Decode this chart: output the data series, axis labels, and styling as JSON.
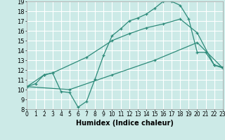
{
  "background_color": "#cceae7",
  "grid_color": "#ffffff",
  "line_color": "#2e8b7a",
  "xlabel": "Humidex (Indice chaleur)",
  "xlabel_fontsize": 7,
  "tick_fontsize": 6,
  "xmin": 0,
  "xmax": 23,
  "ymin": 8,
  "ymax": 19,
  "curve1_x": [
    0,
    1,
    2,
    3,
    4,
    5,
    6,
    7,
    8,
    9,
    10,
    11,
    12,
    13,
    14,
    15,
    16,
    17,
    18,
    19,
    20,
    21,
    22,
    23
  ],
  "curve1_y": [
    10.3,
    10.6,
    11.5,
    11.7,
    9.8,
    9.7,
    8.2,
    8.8,
    11.1,
    13.5,
    15.5,
    16.2,
    17.0,
    17.3,
    17.7,
    18.3,
    19.0,
    19.0,
    18.6,
    17.2,
    13.8,
    13.8,
    12.5,
    12.3
  ],
  "curve2_x": [
    0,
    2,
    3,
    7,
    10,
    12,
    14,
    16,
    18,
    20,
    22,
    23
  ],
  "curve2_y": [
    10.3,
    11.5,
    11.7,
    13.3,
    15.0,
    15.7,
    16.3,
    16.7,
    17.2,
    15.8,
    12.5,
    12.2
  ],
  "curve3_x": [
    0,
    5,
    10,
    15,
    20,
    23
  ],
  "curve3_y": [
    10.3,
    10.0,
    11.5,
    13.0,
    14.8,
    12.2
  ]
}
